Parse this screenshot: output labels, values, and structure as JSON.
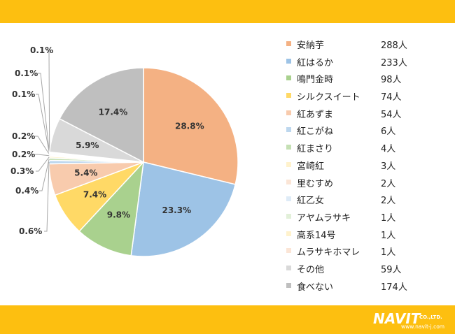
{
  "logo": {
    "name": "NAVIT",
    "suffix": "CO.,LTD.",
    "url": "www.navit-j.com"
  },
  "chart_data": {
    "type": "pie",
    "categories": [
      "安納芋",
      "紅はるか",
      "鳴門金時",
      "シルクスイート",
      "紅あずま",
      "紅こがね",
      "紅まさり",
      "宮崎紅",
      "里むすめ",
      "紅乙女",
      "アヤムラサキ",
      "高系14号",
      "ムラサキホマレ",
      "その他",
      "食べない"
    ],
    "counts": [
      "288人",
      "233人",
      "98人",
      "74人",
      "54人",
      "6人",
      "4人",
      "3人",
      "2人",
      "2人",
      "1人",
      "1人",
      "1人",
      "59人",
      "174人"
    ],
    "values": [
      288,
      233,
      98,
      74,
      54,
      6,
      4,
      3,
      2,
      2,
      1,
      1,
      1,
      59,
      174
    ],
    "percent_labels": [
      "28.8%",
      "23.3%",
      "9.8%",
      "7.4%",
      "5.4%",
      "0.6%",
      "0.4%",
      "0.3%",
      "0.2%",
      "0.2%",
      "0.1%",
      "0.1%",
      "0.1%",
      "5.9%",
      "17.4%"
    ],
    "colors": [
      "#f4b183",
      "#9dc3e6",
      "#a9d18e",
      "#ffd966",
      "#f8cbad",
      "#bdd7ee",
      "#c5e0b4",
      "#fff2cc",
      "#fbe5d6",
      "#deebf7",
      "#e2f0d9",
      "#fff2cc",
      "#fbe5d6",
      "#d9d9d9",
      "#bfbfbf"
    ],
    "start_angle_deg": 0,
    "direction": "clockwise",
    "legend_position": "right"
  }
}
